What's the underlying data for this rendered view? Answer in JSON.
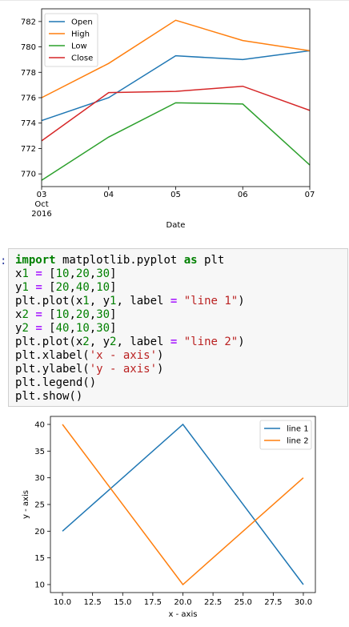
{
  "chart_data": [
    {
      "type": "line",
      "x": [
        "03",
        "04",
        "05",
        "06",
        "07"
      ],
      "x_tick_labels": [
        "03",
        "04",
        "05",
        "06",
        "07"
      ],
      "x_tick_sub": [
        "Oct",
        "2016"
      ],
      "xlabel": "Date",
      "ylabel": "",
      "ylim": [
        769,
        783
      ],
      "y_ticks": [
        770,
        772,
        774,
        776,
        778,
        780,
        782
      ],
      "legend_position": "top-left",
      "series": [
        {
          "name": "Open",
          "color": "#1f77b4",
          "values": [
            774.2,
            776.0,
            779.3,
            779.0,
            779.7
          ]
        },
        {
          "name": "High",
          "color": "#ff7f0e",
          "values": [
            776.0,
            778.7,
            782.1,
            780.5,
            779.7
          ]
        },
        {
          "name": "Low",
          "color": "#2ca02c",
          "values": [
            769.5,
            772.9,
            775.6,
            775.5,
            770.7
          ]
        },
        {
          "name": "Close",
          "color": "#d62728",
          "values": [
            772.6,
            776.4,
            776.5,
            776.9,
            775.0
          ]
        }
      ]
    },
    {
      "type": "line",
      "xlabel": "x - axis",
      "ylabel": "y - axis",
      "xlim": [
        9,
        31
      ],
      "ylim": [
        8.5,
        41.5
      ],
      "x_ticks": [
        "10.0",
        "12.5",
        "15.0",
        "17.5",
        "20.0",
        "22.5",
        "25.0",
        "27.5",
        "30.0"
      ],
      "y_ticks": [
        "10",
        "15",
        "20",
        "25",
        "30",
        "35",
        "40"
      ],
      "legend_position": "top-right",
      "series": [
        {
          "name": "line 1",
          "color": "#1f77b4",
          "x": [
            10,
            20,
            30
          ],
          "y": [
            20,
            40,
            10
          ]
        },
        {
          "name": "line 2",
          "color": "#ff7f0e",
          "x": [
            10,
            20,
            30
          ],
          "y": [
            40,
            10,
            30
          ]
        }
      ]
    }
  ],
  "cell": {
    "prompt": ":",
    "code_lines": [
      "import matplotlib.pyplot as plt",
      "x1 = [10,20,30]",
      "y1 = [20,40,10]",
      "plt.plot(x1, y1, label = \"line 1\")",
      "x2 = [10,20,30]",
      "y2 = [40,10,30]",
      "plt.plot(x2, y2, label = \"line 2\")",
      "plt.xlabel('x - axis')",
      "plt.ylabel('y - axis')",
      "plt.legend()",
      "plt.show()"
    ]
  }
}
